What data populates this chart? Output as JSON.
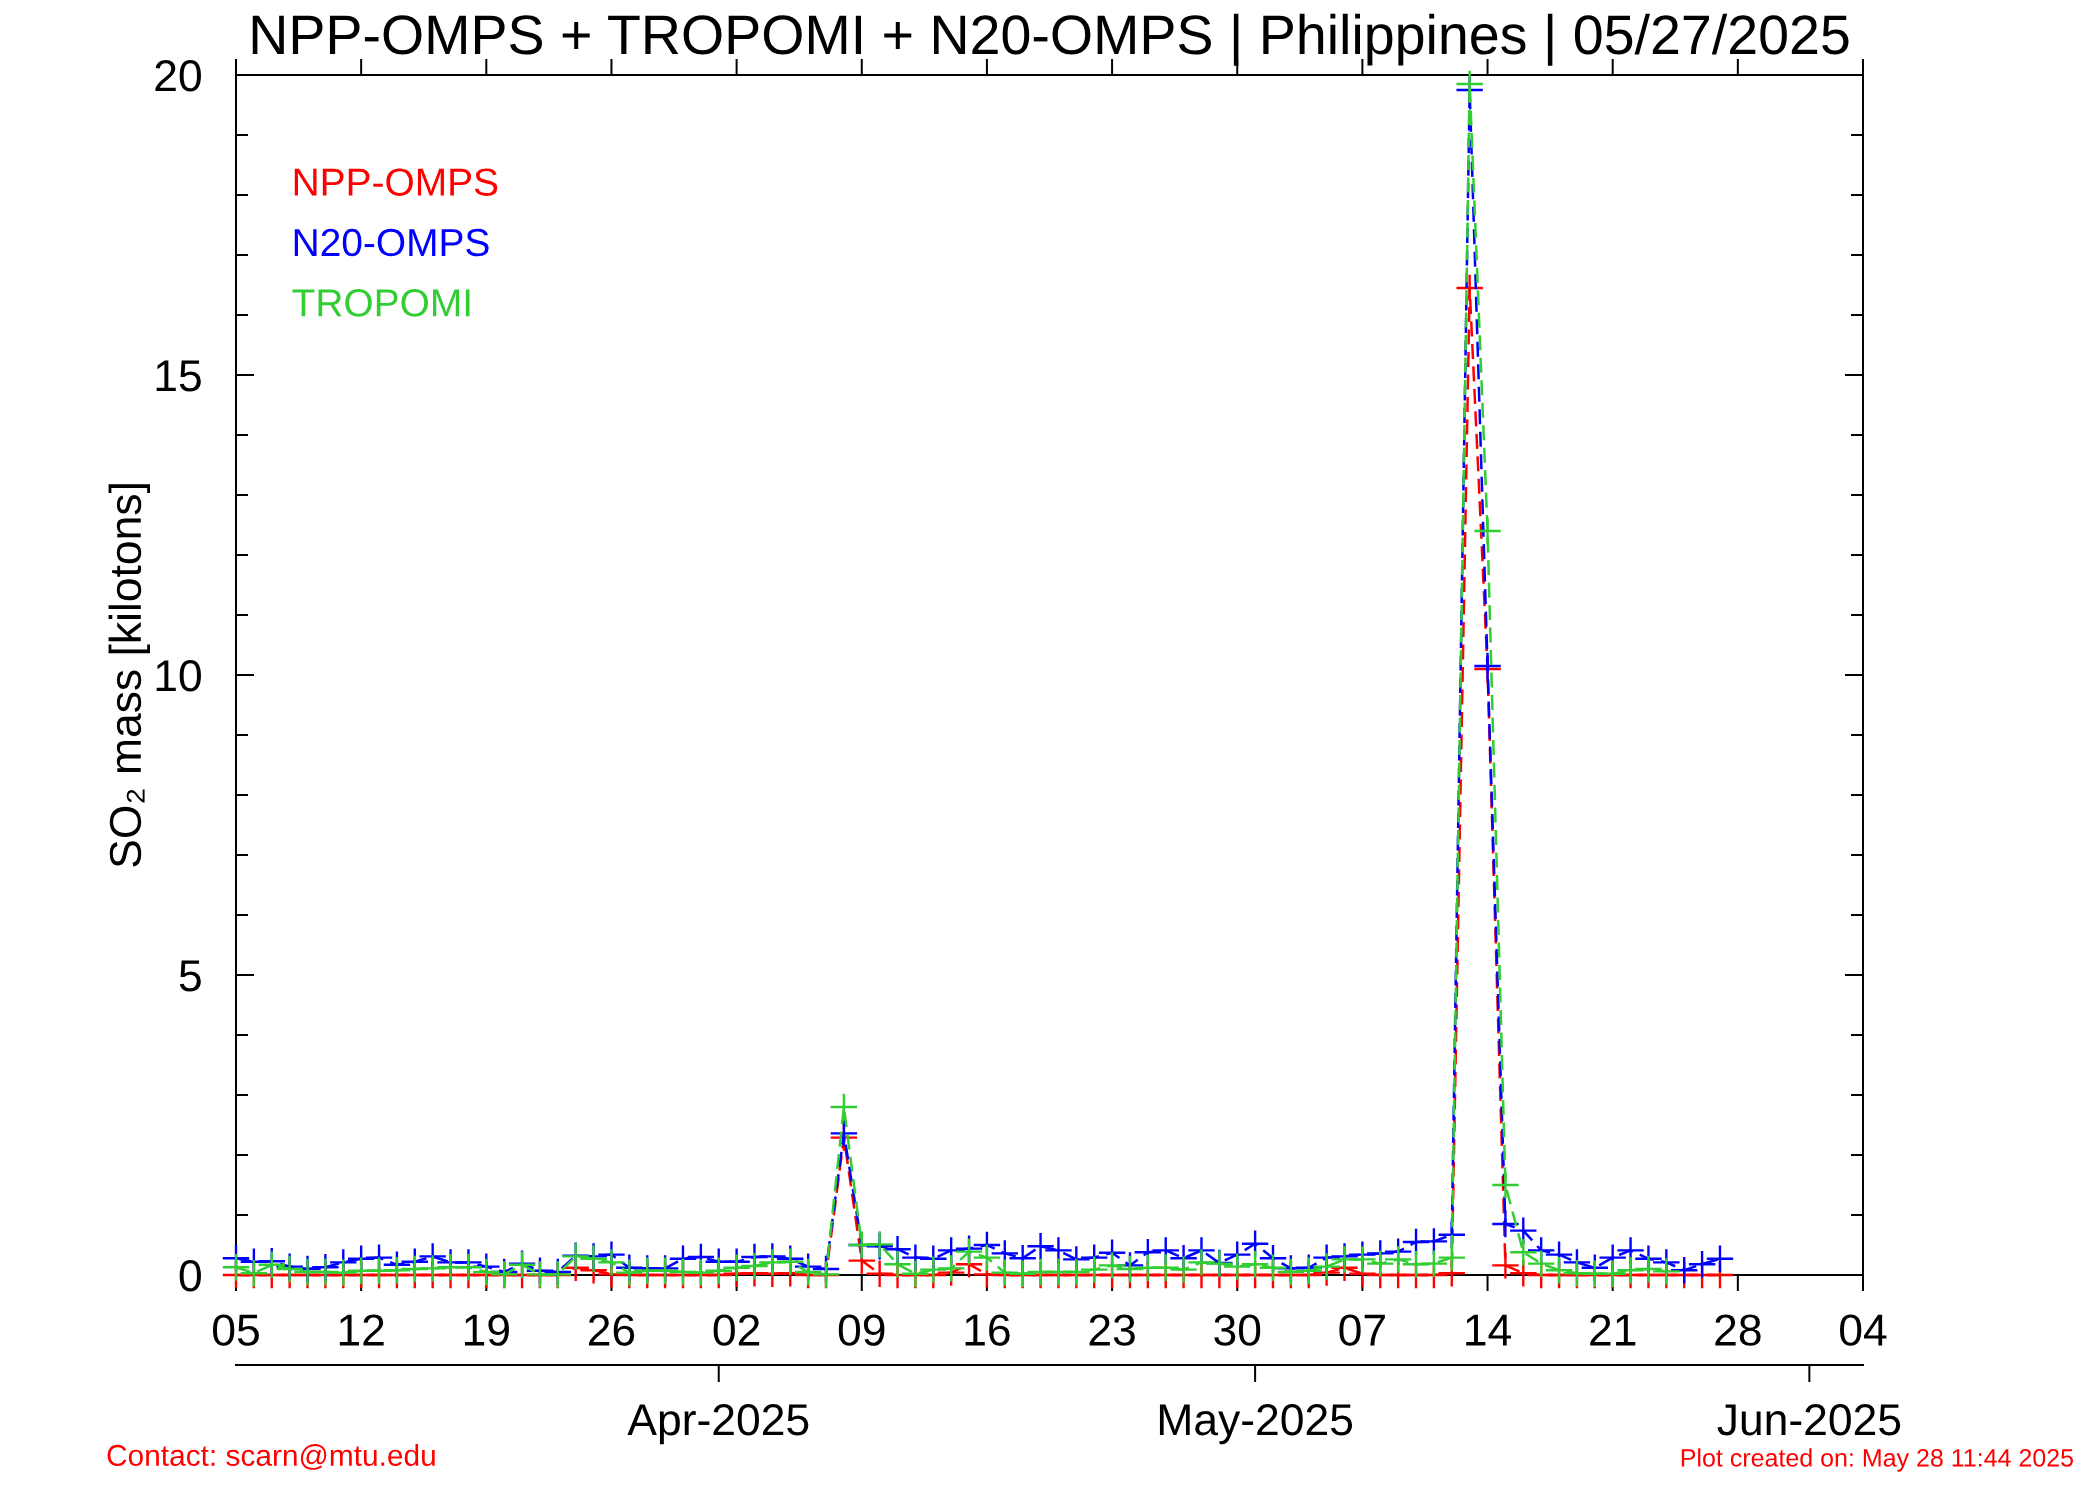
{
  "chart_data": {
    "type": "line",
    "title": "NPP-OMPS + TROPOMI + N20-OMPS | Philippines | 05/27/2025",
    "ylabel": "SO₂ mass [kilotons]",
    "x": [
      "2025-03-05",
      "2025-03-06",
      "2025-03-07",
      "2025-03-08",
      "2025-03-09",
      "2025-03-10",
      "2025-03-11",
      "2025-03-12",
      "2025-03-13",
      "2025-03-14",
      "2025-03-15",
      "2025-03-16",
      "2025-03-17",
      "2025-03-18",
      "2025-03-19",
      "2025-03-20",
      "2025-03-21",
      "2025-03-22",
      "2025-03-23",
      "2025-03-24",
      "2025-03-25",
      "2025-03-26",
      "2025-03-27",
      "2025-03-28",
      "2025-03-29",
      "2025-03-30",
      "2025-03-31",
      "2025-04-01",
      "2025-04-02",
      "2025-04-03",
      "2025-04-04",
      "2025-04-05",
      "2025-04-06",
      "2025-04-07",
      "2025-04-08",
      "2025-04-09",
      "2025-04-10",
      "2025-04-11",
      "2025-04-12",
      "2025-04-13",
      "2025-04-14",
      "2025-04-15",
      "2025-04-16",
      "2025-04-17",
      "2025-04-18",
      "2025-04-19",
      "2025-04-20",
      "2025-04-21",
      "2025-04-22",
      "2025-04-23",
      "2025-04-24",
      "2025-04-25",
      "2025-04-26",
      "2025-04-27",
      "2025-04-28",
      "2025-04-29",
      "2025-04-30",
      "2025-05-01",
      "2025-05-02",
      "2025-05-03",
      "2025-05-04",
      "2025-05-05",
      "2025-05-06",
      "2025-05-07",
      "2025-05-08",
      "2025-05-09",
      "2025-05-10",
      "2025-05-11",
      "2025-05-12",
      "2025-05-13",
      "2025-05-14",
      "2025-05-15",
      "2025-05-16",
      "2025-05-17",
      "2025-05-18",
      "2025-05-19",
      "2025-05-20",
      "2025-05-21",
      "2025-05-22",
      "2025-05-23",
      "2025-05-24",
      "2025-05-25",
      "2025-05-26",
      "2025-05-27"
    ],
    "series": [
      {
        "name": "NPP-OMPS",
        "color": "#ff0000",
        "values": [
          0,
          0,
          0,
          0,
          0,
          0,
          0,
          0,
          0,
          0,
          0,
          0,
          0,
          0,
          0,
          0,
          0,
          0,
          0,
          0.12,
          0.08,
          0.01,
          0,
          0,
          0,
          0,
          0,
          0,
          0.02,
          0.03,
          0.02,
          0.03,
          0,
          0,
          2.29,
          0.24,
          0.02,
          0,
          0,
          0,
          0.04,
          0.18,
          0.01,
          0,
          0,
          0,
          0,
          0,
          0,
          0,
          0,
          0,
          0,
          0,
          0,
          0,
          0,
          0,
          0,
          0,
          0,
          0.04,
          0.12,
          0.02,
          0,
          0,
          0,
          0,
          0.03,
          16.45,
          10.1,
          0.16,
          0.03,
          0,
          0,
          0,
          0,
          0,
          0,
          0,
          0,
          0,
          0,
          0
        ]
      },
      {
        "name": "N20-OMPS",
        "color": "#0000ff",
        "values": [
          0.28,
          0.22,
          0.23,
          0.14,
          0.1,
          0.13,
          0.21,
          0.27,
          0.29,
          0.17,
          0.22,
          0.31,
          0.21,
          0.21,
          0.14,
          0.05,
          0.19,
          0.07,
          0.05,
          0.32,
          0.31,
          0.34,
          0.12,
          0.11,
          0.11,
          0.27,
          0.3,
          0.22,
          0.22,
          0.3,
          0.31,
          0.27,
          0.14,
          0.1,
          2.36,
          0.5,
          0.48,
          0.43,
          0.29,
          0.27,
          0.41,
          0.44,
          0.5,
          0.36,
          0.28,
          0.48,
          0.41,
          0.26,
          0.29,
          0.37,
          0.16,
          0.38,
          0.41,
          0.28,
          0.41,
          0.2,
          0.34,
          0.52,
          0.28,
          0.11,
          0.12,
          0.29,
          0.31,
          0.34,
          0.36,
          0.39,
          0.55,
          0.56,
          0.67,
          19.75,
          10.15,
          0.85,
          0.74,
          0.41,
          0.34,
          0.21,
          0.12,
          0.29,
          0.41,
          0.27,
          0.21,
          0.08,
          0.18,
          0.27
        ]
      },
      {
        "name": "TROPOMI",
        "color": "#32cd32",
        "values": [
          0.13,
          0.03,
          0.17,
          0.1,
          0.05,
          0.05,
          0.04,
          0.07,
          0.07,
          0.08,
          0.1,
          0.11,
          0.13,
          0.13,
          0.05,
          0.01,
          0.17,
          0.01,
          0.01,
          0.31,
          0.27,
          0.21,
          0.04,
          0.07,
          0.07,
          0.05,
          0.04,
          0.07,
          0.12,
          0.15,
          0.21,
          0.22,
          0.05,
          0.01,
          2.8,
          0.5,
          0.51,
          0.18,
          0.02,
          0.09,
          0.11,
          0.39,
          0.29,
          0.04,
          0.02,
          0.05,
          0.05,
          0.05,
          0.09,
          0.16,
          0.1,
          0.12,
          0.12,
          0.09,
          0.21,
          0.19,
          0.14,
          0.18,
          0.12,
          0.05,
          0.07,
          0.14,
          0.26,
          0.26,
          0.19,
          0.26,
          0.18,
          0.19,
          0.29,
          19.85,
          12.4,
          1.5,
          0.38,
          0.19,
          0.08,
          0.03,
          0.02,
          0.02,
          0.08,
          0.1,
          0.06,
          null,
          null,
          null
        ]
      }
    ],
    "xlim": [
      "2025-03-05",
      "2025-06-04"
    ],
    "xticks": [
      {
        "value": "2025-03-05",
        "label": "05"
      },
      {
        "value": "2025-03-12",
        "label": "12"
      },
      {
        "value": "2025-03-19",
        "label": "19"
      },
      {
        "value": "2025-03-26",
        "label": "26"
      },
      {
        "value": "2025-04-02",
        "label": "02"
      },
      {
        "value": "2025-04-09",
        "label": "09"
      },
      {
        "value": "2025-04-16",
        "label": "16"
      },
      {
        "value": "2025-04-23",
        "label": "23"
      },
      {
        "value": "2025-04-30",
        "label": "30"
      },
      {
        "value": "2025-05-07",
        "label": "07"
      },
      {
        "value": "2025-05-14",
        "label": "14"
      },
      {
        "value": "2025-05-21",
        "label": "21"
      },
      {
        "value": "2025-05-28",
        "label": "28"
      },
      {
        "value": "2025-06-04",
        "label": "04"
      }
    ],
    "x2lim": [
      "2025-03-05",
      "2025-06-04"
    ],
    "x2ticks": [
      {
        "value": "2025-04-01",
        "label": "Apr-2025"
      },
      {
        "value": "2025-05-01",
        "label": "May-2025"
      },
      {
        "value": "2025-06-01",
        "label": "Jun-2025"
      }
    ],
    "ylim": [
      0,
      20
    ],
    "yticks": [
      0,
      {
        "value": 1,
        "label": null
      },
      {
        "value": 2,
        "label": null
      },
      {
        "value": 3,
        "label": null
      },
      {
        "value": 4,
        "label": null
      },
      5,
      {
        "value": 6,
        "label": null
      },
      {
        "value": 7,
        "label": null
      },
      {
        "value": 8,
        "label": null
      },
      {
        "value": 9,
        "label": null
      },
      10,
      {
        "value": 11,
        "label": null
      },
      {
        "value": 12,
        "label": null
      },
      {
        "value": 13,
        "label": null
      },
      {
        "value": 14,
        "label": null
      },
      15,
      {
        "value": 16,
        "label": null
      },
      {
        "value": 17,
        "label": null
      },
      {
        "value": 18,
        "label": null
      },
      {
        "value": 19,
        "label": null
      },
      20
    ],
    "marker": "cross",
    "line_style": "dashed",
    "legend": "top left",
    "annotations": [
      "Contact: scarn@mtu.edu",
      "Plot created on: May 28 11:44 2025"
    ]
  }
}
